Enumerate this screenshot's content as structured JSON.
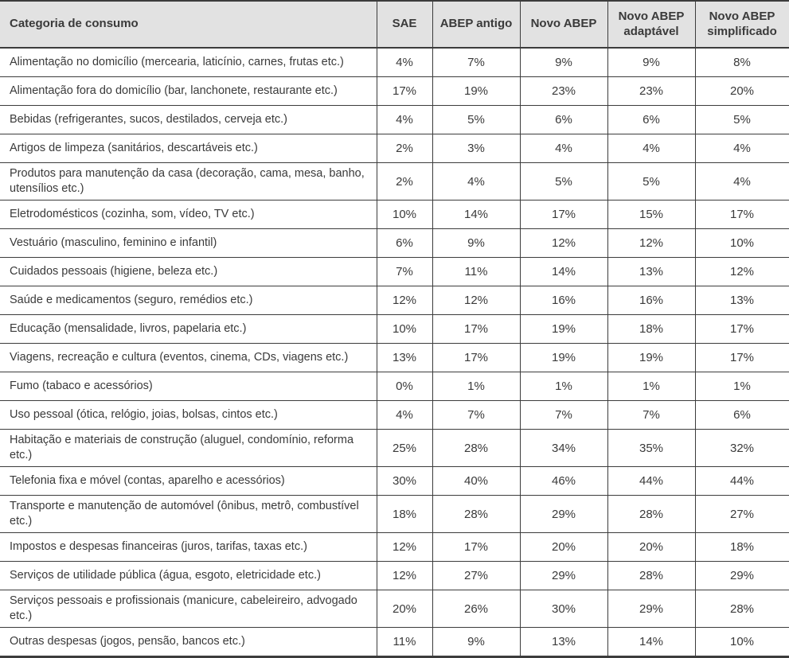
{
  "table": {
    "title_column_header": "Categoria de consumo",
    "value_column_headers": [
      "SAE",
      "ABEP antigo",
      "Novo ABEP",
      "Novo ABEP adaptável",
      "Novo ABEP simplificado"
    ],
    "rows": [
      {
        "category": "Alimentação no domicílio (mercearia, laticínio, carnes, frutas etc.)",
        "values": [
          "4%",
          "7%",
          "9%",
          "9%",
          "8%"
        ]
      },
      {
        "category": "Alimentação fora do domicílio (bar, lanchonete, restaurante etc.)",
        "values": [
          "17%",
          "19%",
          "23%",
          "23%",
          "20%"
        ]
      },
      {
        "category": "Bebidas (refrigerantes, sucos, destilados, cerveja etc.)",
        "values": [
          "4%",
          "5%",
          "6%",
          "6%",
          "5%"
        ]
      },
      {
        "category": "Artigos de limpeza (sanitários, descartáveis etc.)",
        "values": [
          "2%",
          "3%",
          "4%",
          "4%",
          "4%"
        ]
      },
      {
        "category": "Produtos para manutenção da casa (decoração, cama, mesa, banho, utensílios etc.)",
        "values": [
          "2%",
          "4%",
          "5%",
          "5%",
          "4%"
        ]
      },
      {
        "category": "Eletrodomésticos (cozinha, som, vídeo, TV etc.)",
        "values": [
          "10%",
          "14%",
          "17%",
          "15%",
          "17%"
        ]
      },
      {
        "category": "Vestuário (masculino, feminino e infantil)",
        "values": [
          "6%",
          "9%",
          "12%",
          "12%",
          "10%"
        ]
      },
      {
        "category": "Cuidados pessoais (higiene, beleza etc.)",
        "values": [
          "7%",
          "11%",
          "14%",
          "13%",
          "12%"
        ]
      },
      {
        "category": "Saúde e medicamentos (seguro, remédios etc.)",
        "values": [
          "12%",
          "12%",
          "16%",
          "16%",
          "13%"
        ]
      },
      {
        "category": "Educação (mensalidade, livros, papelaria etc.)",
        "values": [
          "10%",
          "17%",
          "19%",
          "18%",
          "17%"
        ]
      },
      {
        "category": "Viagens, recreação e cultura (eventos, cinema, CDs, viagens etc.)",
        "values": [
          "13%",
          "17%",
          "19%",
          "19%",
          "17%"
        ]
      },
      {
        "category": "Fumo (tabaco e acessórios)",
        "values": [
          "0%",
          "1%",
          "1%",
          "1%",
          "1%"
        ]
      },
      {
        "category": "Uso pessoal (ótica, relógio, joias, bolsas, cintos etc.)",
        "values": [
          "4%",
          "7%",
          "7%",
          "7%",
          "6%"
        ]
      },
      {
        "category": "Habitação e materiais de construção (aluguel, condomínio, reforma etc.)",
        "values": [
          "25%",
          "28%",
          "34%",
          "35%",
          "32%"
        ]
      },
      {
        "category": "Telefonia fixa e móvel (contas, aparelho e acessórios)",
        "values": [
          "30%",
          "40%",
          "46%",
          "44%",
          "44%"
        ]
      },
      {
        "category": "Transporte e manutenção de automóvel (ônibus, metrô, combustível etc.)",
        "values": [
          "18%",
          "28%",
          "29%",
          "28%",
          "27%"
        ]
      },
      {
        "category": "Impostos e despesas financeiras (juros, tarifas, taxas etc.)",
        "values": [
          "12%",
          "17%",
          "20%",
          "20%",
          "18%"
        ]
      },
      {
        "category": "Serviços de utilidade pública (água, esgoto, eletricidade etc.)",
        "values": [
          "12%",
          "27%",
          "29%",
          "28%",
          "29%"
        ]
      },
      {
        "category": "Serviços pessoais e profissionais (manicure, cabeleireiro, advogado etc.)",
        "values": [
          "20%",
          "26%",
          "30%",
          "29%",
          "28%"
        ]
      },
      {
        "category": "Outras despesas (jogos, pensão, bancos etc.)",
        "values": [
          "11%",
          "9%",
          "13%",
          "14%",
          "10%"
        ]
      }
    ],
    "colors": {
      "header_background": "#e2e2e2",
      "border": "#3c3c3c",
      "text": "#3a3a3a",
      "page_background": "#ffffff"
    }
  }
}
